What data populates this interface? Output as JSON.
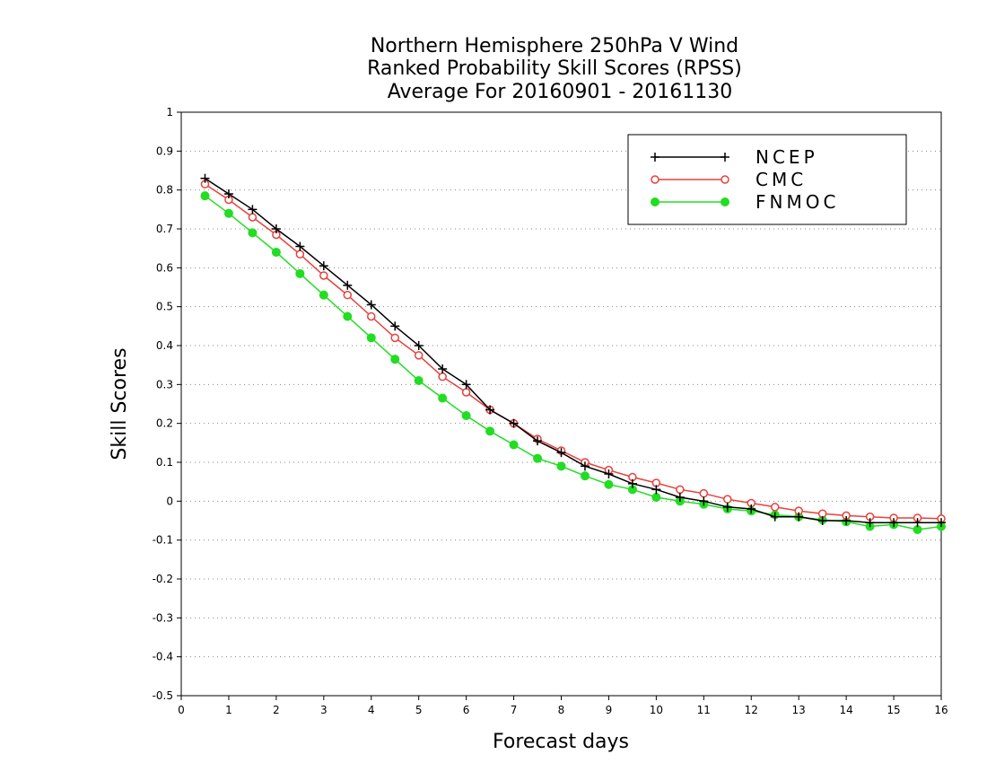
{
  "chart_data": {
    "type": "line",
    "title": [
      "Northern Hemisphere 250hPa V Wind",
      "Ranked Probability Skill Scores (RPSS)",
      "Average For 20160901 - 20161130"
    ],
    "xlabel": "Forecast days",
    "ylabel": "Skill Scores",
    "xlim": [
      0,
      16
    ],
    "ylim": [
      -0.5,
      1
    ],
    "xticks": [
      "0",
      "1",
      "2",
      "3",
      "4",
      "5",
      "6",
      "7",
      "8",
      "9",
      "10",
      "11",
      "12",
      "13",
      "14",
      "15",
      "16"
    ],
    "yticks": [
      "-0.5",
      "-0.4",
      "-0.3",
      "-0.2",
      "-0.1",
      "0",
      "0.1",
      "0.2",
      "0.3",
      "0.4",
      "0.5",
      "0.6",
      "0.7",
      "0.8",
      "0.9",
      "1"
    ],
    "grid": true,
    "legend_position": "top-right",
    "x": [
      0.5,
      1,
      1.5,
      2,
      2.5,
      3,
      3.5,
      4,
      4.5,
      5,
      5.5,
      6,
      6.5,
      7,
      7.5,
      8,
      8.5,
      9,
      9.5,
      10,
      10.5,
      11,
      11.5,
      12,
      12.5,
      13,
      13.5,
      14,
      14.5,
      15,
      15.5,
      16
    ],
    "series": [
      {
        "name": "NCEP",
        "color": "#000000",
        "marker": "plus",
        "values": [
          0.83,
          0.79,
          0.75,
          0.7,
          0.655,
          0.605,
          0.555,
          0.505,
          0.45,
          0.4,
          0.34,
          0.3,
          0.235,
          0.2,
          0.155,
          0.125,
          0.09,
          0.07,
          0.045,
          0.03,
          0.01,
          0.0,
          -0.015,
          -0.02,
          -0.04,
          -0.04,
          -0.05,
          -0.05,
          -0.055,
          -0.055,
          -0.055,
          -0.055
        ]
      },
      {
        "name": "CMC",
        "color": "#e8403c",
        "marker": "open-circle",
        "values": [
          0.815,
          0.775,
          0.73,
          0.685,
          0.635,
          0.58,
          0.53,
          0.475,
          0.42,
          0.375,
          0.32,
          0.28,
          0.235,
          0.2,
          0.16,
          0.13,
          0.1,
          0.08,
          0.062,
          0.047,
          0.03,
          0.02,
          0.005,
          -0.005,
          -0.015,
          -0.025,
          -0.032,
          -0.037,
          -0.04,
          -0.043,
          -0.043,
          -0.045
        ]
      },
      {
        "name": "FNMOC",
        "color": "#22dd22",
        "marker": "filled-circle",
        "values": [
          0.785,
          0.74,
          0.69,
          0.64,
          0.585,
          0.53,
          0.475,
          0.42,
          0.365,
          0.31,
          0.265,
          0.22,
          0.18,
          0.145,
          0.11,
          0.09,
          0.065,
          0.043,
          0.03,
          0.01,
          0.0,
          -0.008,
          -0.02,
          -0.025,
          -0.035,
          -0.04,
          -0.048,
          -0.053,
          -0.065,
          -0.06,
          -0.073,
          -0.065
        ]
      }
    ]
  }
}
